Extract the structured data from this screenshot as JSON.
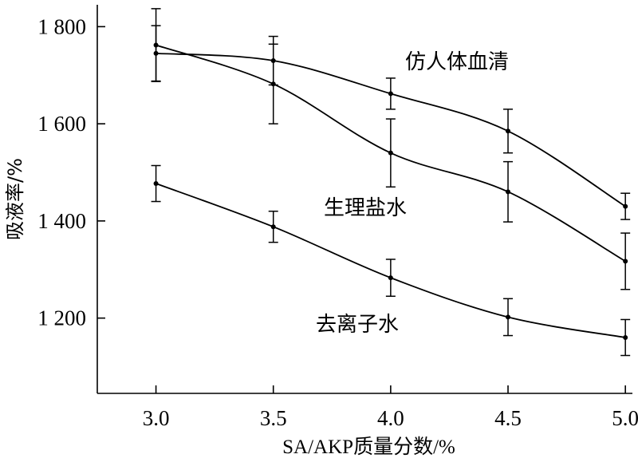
{
  "chart_data": {
    "type": "line",
    "xlabel": "SA/AKP质量分数/%",
    "ylabel": "吸液率/%",
    "x": [
      3.0,
      3.5,
      4.0,
      4.5,
      5.0
    ],
    "x_tick_labels": [
      "3.0",
      "3.5",
      "4.0",
      "4.5",
      "5.0"
    ],
    "y_ticks": [
      1200,
      1400,
      1600,
      1800
    ],
    "y_tick_labels": [
      "1 200",
      "1 400",
      "1 600",
      "1 800"
    ],
    "xlim": [
      2.75,
      5.03
    ],
    "ylim": [
      1045,
      1845
    ],
    "grid": false,
    "legend": "none (series labeled directly on chart)",
    "series": [
      {
        "name": "仿人体血清",
        "values": [
          1745,
          1730,
          1662,
          1585,
          1430
        ],
        "error": [
          57,
          50,
          32,
          45,
          27
        ]
      },
      {
        "name": "生理盐水",
        "values": [
          1762,
          1682,
          1540,
          1460,
          1317
        ],
        "error": [
          75,
          82,
          70,
          62,
          58
        ]
      },
      {
        "name": "去离子水",
        "values": [
          1477,
          1388,
          1283,
          1202,
          1160
        ],
        "error": [
          37,
          32,
          38,
          38,
          37
        ]
      }
    ],
    "colors": {
      "line": "#000000",
      "axis": "#000000",
      "background": "#ffffff"
    }
  }
}
